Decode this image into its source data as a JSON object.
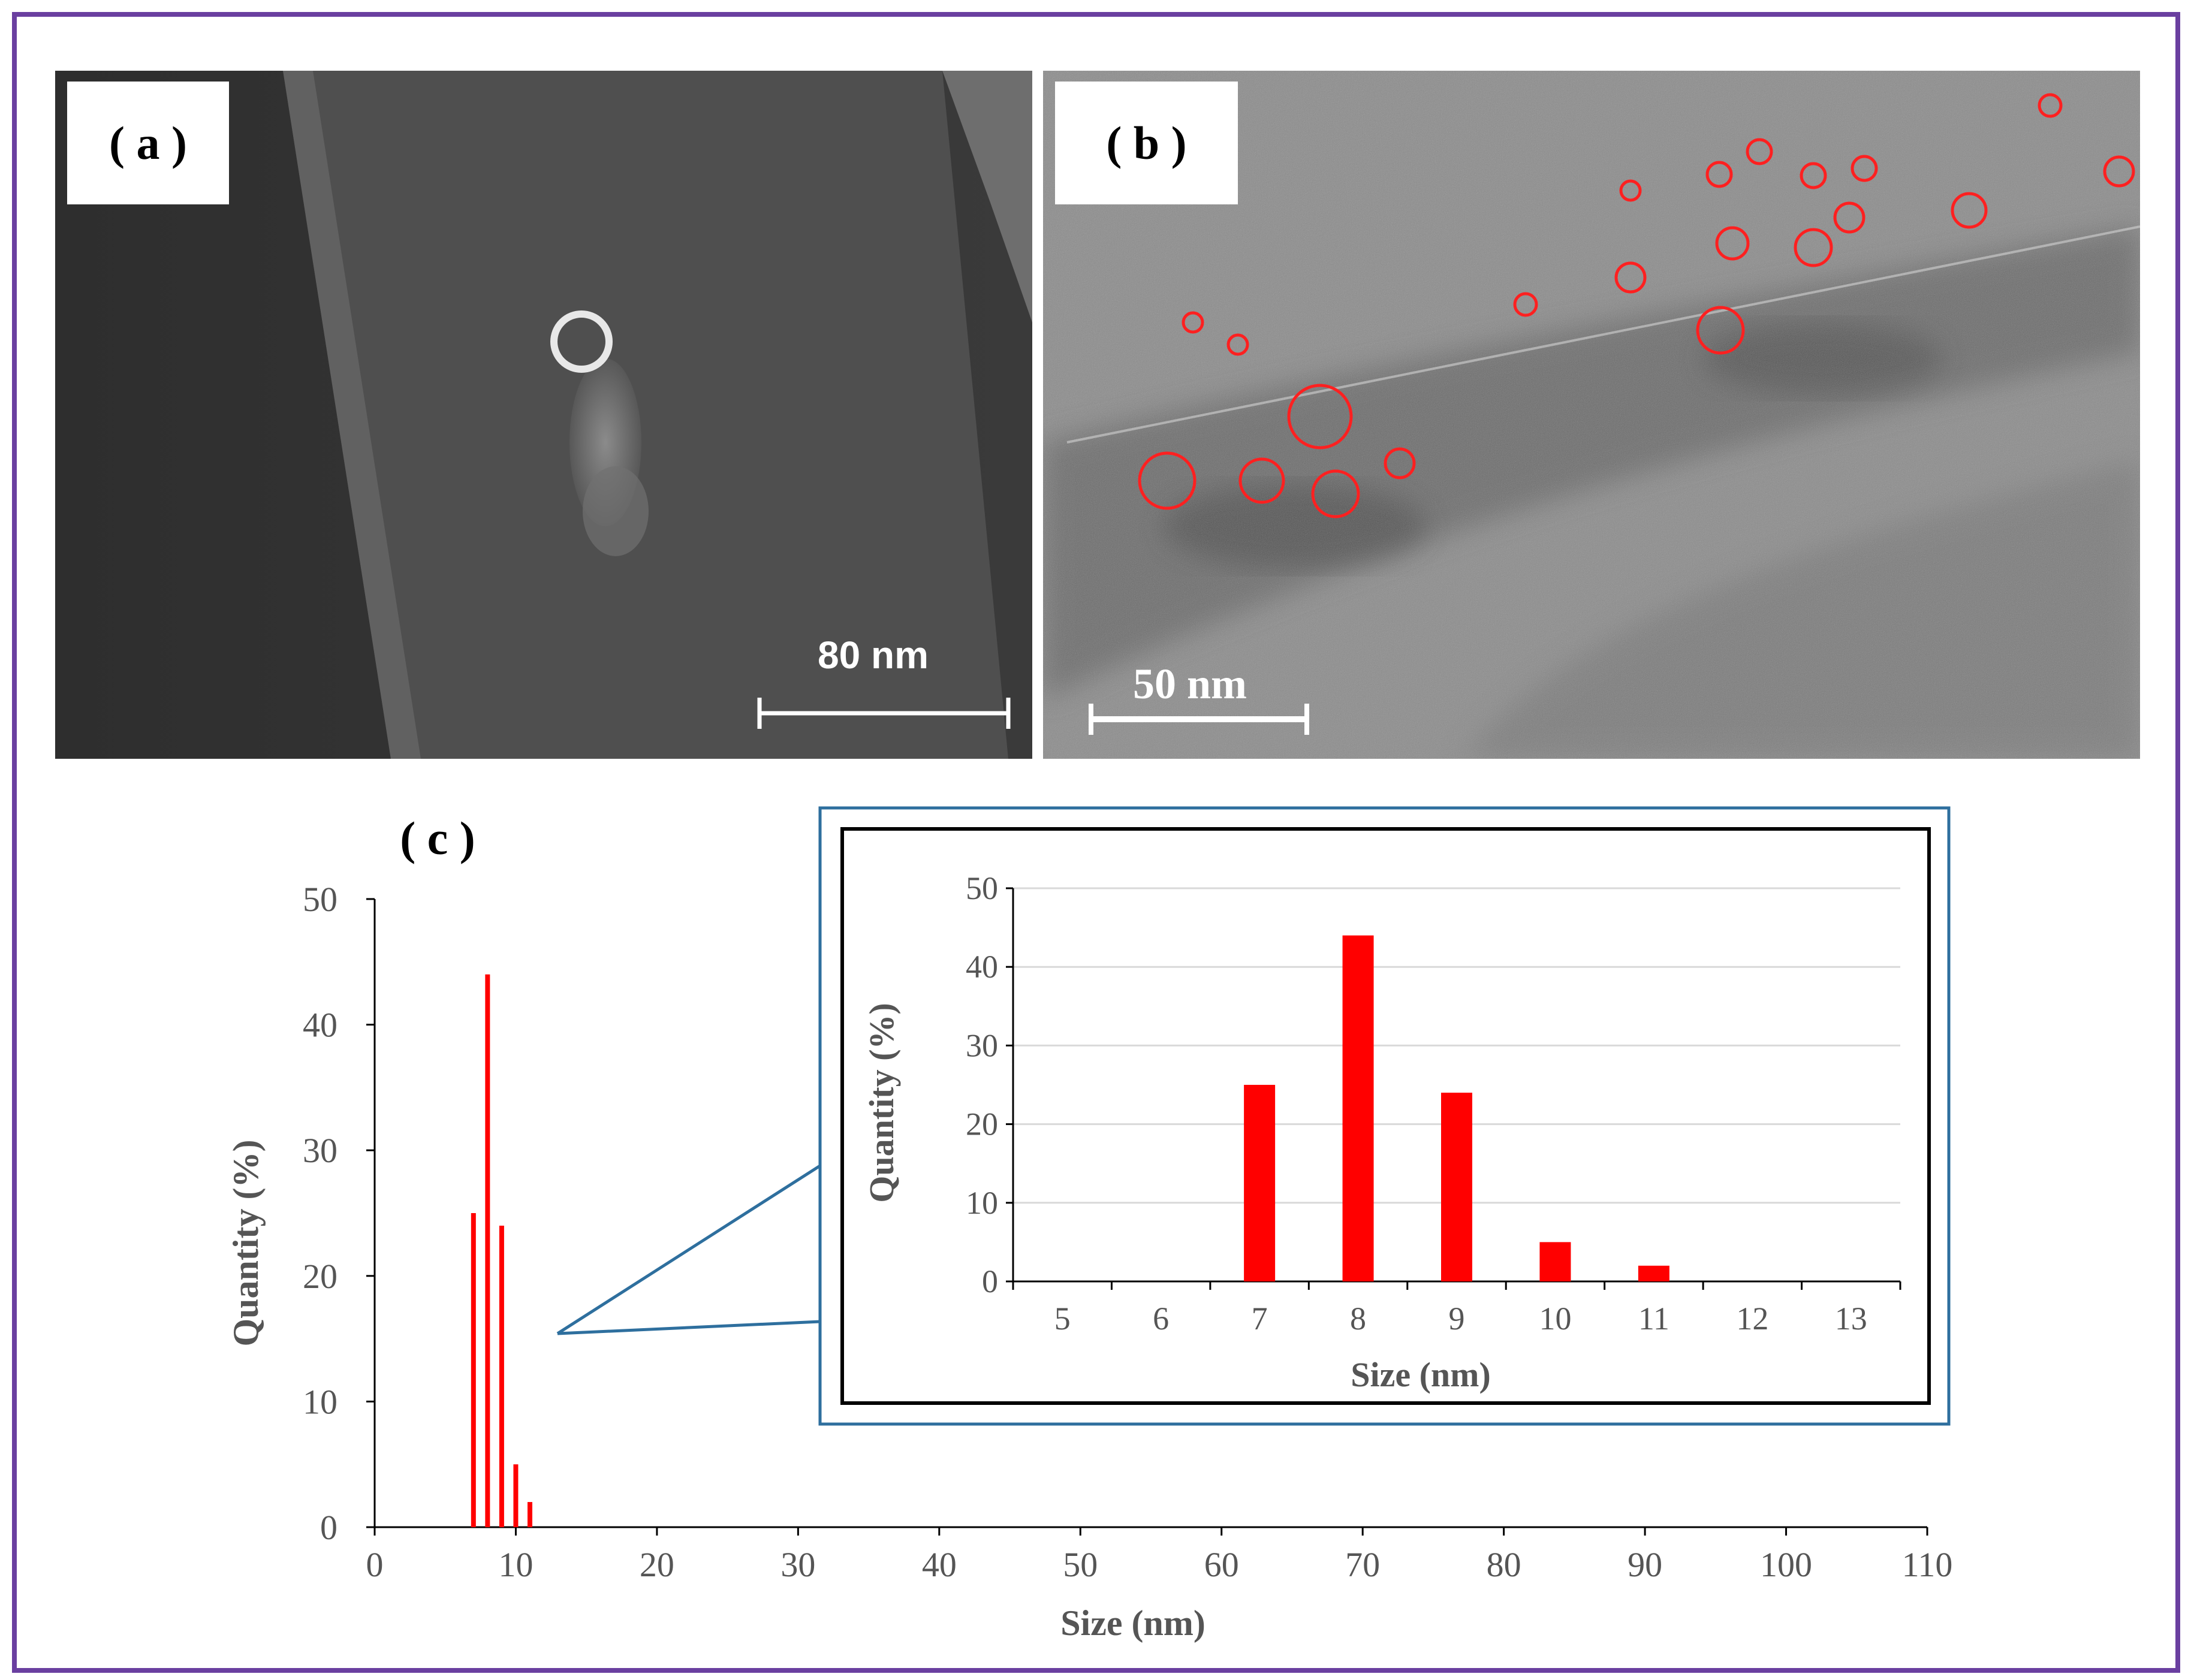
{
  "panels": {
    "a": {
      "label": "( a )",
      "scale_bar": "80 nm"
    },
    "b": {
      "label": "( b )",
      "scale_bar": "50 nm"
    },
    "c": {
      "label": "( c )"
    }
  },
  "colors": {
    "frame": "#6a3fa0",
    "bars": "#ff0000",
    "inset_border": "#2e6f9e",
    "circles": "#ff2020"
  },
  "chart_data": [
    {
      "type": "bar",
      "name": "main",
      "xlabel": "Size (nm)",
      "ylabel": "Quantity (%)",
      "xlim": [
        0,
        110
      ],
      "ylim": [
        0,
        50
      ],
      "xticks": [
        0,
        10,
        20,
        30,
        40,
        50,
        60,
        70,
        80,
        90,
        100,
        110
      ],
      "yticks": [
        0,
        10,
        20,
        30,
        40,
        50
      ],
      "x": [
        7,
        8,
        9,
        10,
        11
      ],
      "values": [
        25,
        44,
        24,
        5,
        2
      ]
    },
    {
      "type": "bar",
      "name": "inset",
      "xlabel": "Size (nm)",
      "ylabel": "Quantity (%)",
      "ylim": [
        0,
        50
      ],
      "categories": [
        "5",
        "6",
        "7",
        "8",
        "9",
        "10",
        "11",
        "12",
        "13"
      ],
      "yticks": [
        0,
        10,
        20,
        30,
        40,
        50
      ],
      "values": [
        0,
        0,
        25,
        44,
        24,
        5,
        2,
        0,
        0
      ],
      "grid": true
    }
  ]
}
